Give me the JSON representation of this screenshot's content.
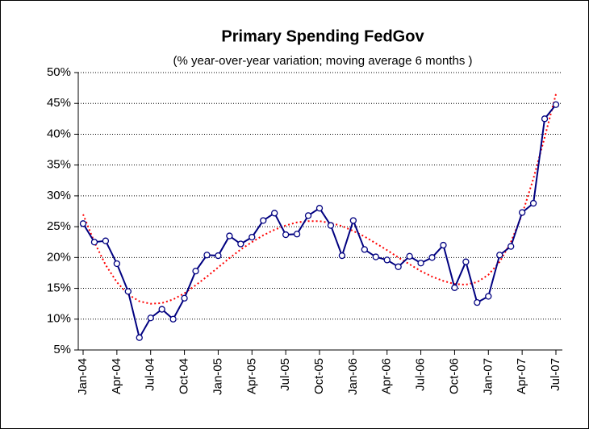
{
  "chart_data": {
    "type": "line",
    "title": "Primary Spending FedGov",
    "subtitle": "(% year-over-year variation; moving average 6 months )",
    "categories": [
      "Jan-04",
      null,
      null,
      "Apr-04",
      null,
      null,
      "Jul-04",
      null,
      null,
      "Oct-04",
      null,
      null,
      "Jan-05",
      null,
      null,
      "Apr-05",
      null,
      null,
      "Jul-05",
      null,
      null,
      "Oct-05",
      null,
      null,
      "Jan-06",
      null,
      null,
      "Apr-06",
      null,
      null,
      "Jul-06",
      null,
      null,
      "Oct-06",
      null,
      null,
      "Jan-07",
      null,
      null,
      "Apr-07",
      null,
      null,
      "Jul-07"
    ],
    "series": [
      {
        "color": "#000080",
        "values": [
          25.5,
          22.5,
          22.7,
          19,
          14.5,
          7,
          10.2,
          11.6,
          10,
          13.4,
          17.8,
          20.4,
          20.3,
          23.5,
          22.2,
          23.3,
          26,
          27.2,
          23.7,
          23.8,
          26.8,
          28,
          25.2,
          20.3,
          26,
          21.3,
          20.1,
          19.6,
          18.5,
          20.2,
          19.1,
          20,
          22,
          15.1,
          19.3,
          12.7,
          13.7,
          20.4,
          21.8,
          27.3,
          28.8,
          42.5,
          44.8
        ]
      }
    ],
    "trend": {
      "color": "#ff0000",
      "values": [
        27,
        22.5,
        18.8,
        16,
        14,
        12.9,
        12.5,
        12.6,
        13.2,
        14.2,
        15.5,
        16.9,
        18.4,
        19.9,
        21.3,
        22.5,
        23.6,
        24.5,
        25.2,
        25.7,
        25.9,
        25.9,
        25.6,
        25.1,
        24.3,
        23.4,
        22.3,
        21.2,
        20,
        18.9,
        17.8,
        16.9,
        16.2,
        15.7,
        15.6,
        16,
        17.2,
        19.3,
        22.5,
        27,
        32.8,
        39.5,
        46.5
      ]
    },
    "ylim": [
      5,
      50
    ],
    "yticks": [
      {
        "value": 5,
        "label": "5%"
      },
      {
        "value": 10,
        "label": "10%"
      },
      {
        "value": 15,
        "label": "15%"
      },
      {
        "value": 20,
        "label": "20%"
      },
      {
        "value": 25,
        "label": "25%"
      },
      {
        "value": 30,
        "label": "30%"
      },
      {
        "value": 35,
        "label": "35%"
      },
      {
        "value": 40,
        "label": "40%"
      },
      {
        "value": 45,
        "label": "45%"
      },
      {
        "value": 50,
        "label": "50%"
      }
    ],
    "grid": true
  }
}
